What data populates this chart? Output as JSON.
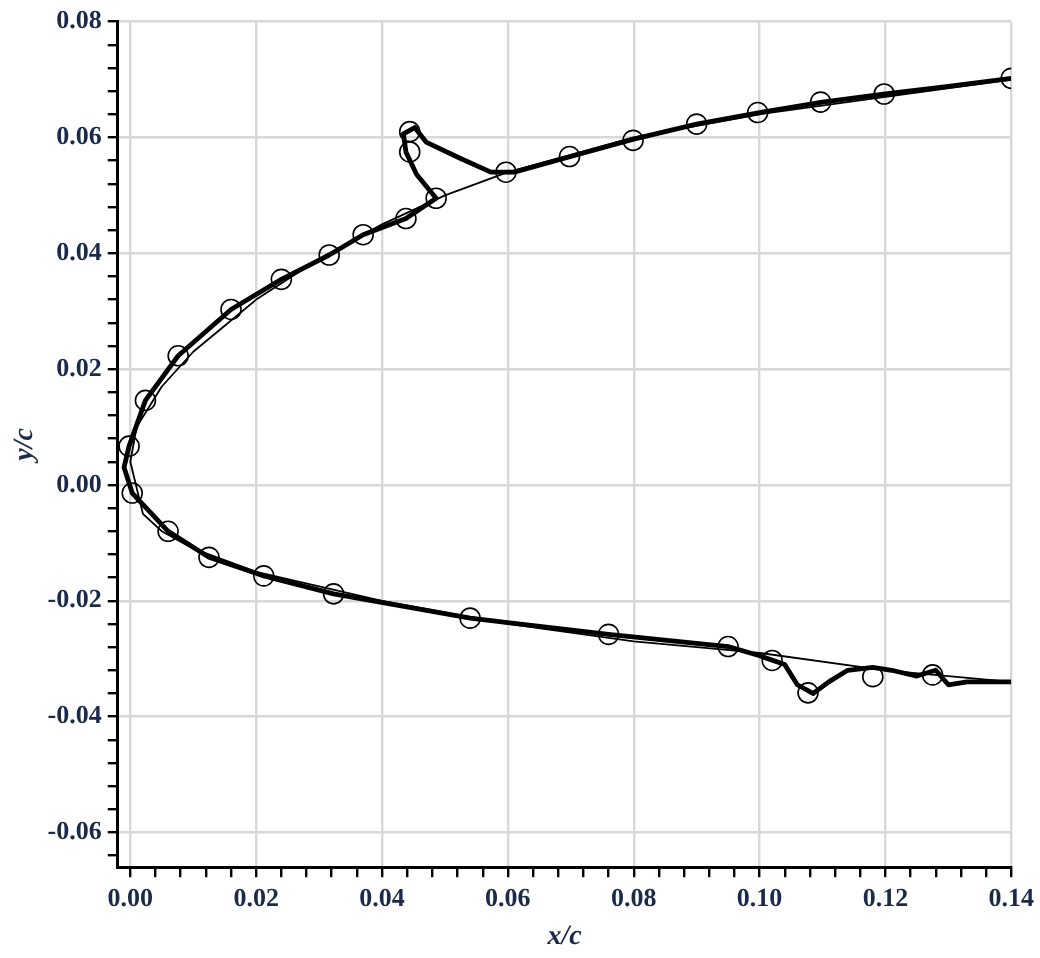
{
  "chart_data": {
    "type": "line",
    "xlabel": "x/c",
    "ylabel": "y/c",
    "xlim": [
      -0.002,
      0.14
    ],
    "ylim": [
      -0.066,
      0.08
    ],
    "xticks": [
      {
        "value": 0,
        "label": "0.00"
      },
      {
        "value": 0.004,
        "label": null
      },
      {
        "value": 0.008,
        "label": null
      },
      {
        "value": 0.012,
        "label": null
      },
      {
        "value": 0.016,
        "label": null
      },
      {
        "value": 0.02,
        "label": "0.02"
      },
      {
        "value": 0.024,
        "label": null
      },
      {
        "value": 0.028,
        "label": null
      },
      {
        "value": 0.032,
        "label": null
      },
      {
        "value": 0.036,
        "label": null
      },
      {
        "value": 0.04,
        "label": "0.04"
      },
      {
        "value": 0.044,
        "label": null
      },
      {
        "value": 0.048,
        "label": null
      },
      {
        "value": 0.052,
        "label": null
      },
      {
        "value": 0.056,
        "label": null
      },
      {
        "value": 0.06,
        "label": "0.06"
      },
      {
        "value": 0.064,
        "label": null
      },
      {
        "value": 0.068,
        "label": null
      },
      {
        "value": 0.072,
        "label": null
      },
      {
        "value": 0.076,
        "label": null
      },
      {
        "value": 0.08,
        "label": "0.08"
      },
      {
        "value": 0.084,
        "label": null
      },
      {
        "value": 0.088,
        "label": null
      },
      {
        "value": 0.092,
        "label": null
      },
      {
        "value": 0.096,
        "label": null
      },
      {
        "value": 0.1,
        "label": "0.10"
      },
      {
        "value": 0.104,
        "label": null
      },
      {
        "value": 0.108,
        "label": null
      },
      {
        "value": 0.112,
        "label": null
      },
      {
        "value": 0.116,
        "label": null
      },
      {
        "value": 0.12,
        "label": "0.12"
      },
      {
        "value": 0.124,
        "label": null
      },
      {
        "value": 0.128,
        "label": null
      },
      {
        "value": 0.132,
        "label": null
      },
      {
        "value": 0.136,
        "label": null
      },
      {
        "value": 0.14,
        "label": "0.14"
      }
    ],
    "yticks": [
      {
        "value": -0.064,
        "label": null
      },
      {
        "value": -0.06,
        "label": "-0.06"
      },
      {
        "value": -0.056,
        "label": null
      },
      {
        "value": -0.052,
        "label": null
      },
      {
        "value": -0.048,
        "label": null
      },
      {
        "value": -0.044,
        "label": null
      },
      {
        "value": -0.04,
        "label": "-0.04"
      },
      {
        "value": -0.036,
        "label": null
      },
      {
        "value": -0.032,
        "label": null
      },
      {
        "value": -0.028,
        "label": null
      },
      {
        "value": -0.024,
        "label": null
      },
      {
        "value": -0.02,
        "label": "-0.02"
      },
      {
        "value": -0.016,
        "label": null
      },
      {
        "value": -0.012,
        "label": null
      },
      {
        "value": -0.008,
        "label": null
      },
      {
        "value": -0.004,
        "label": null
      },
      {
        "value": 0,
        "label": "0.00"
      },
      {
        "value": 0.004,
        "label": null
      },
      {
        "value": 0.008,
        "label": null
      },
      {
        "value": 0.012,
        "label": null
      },
      {
        "value": 0.016,
        "label": null
      },
      {
        "value": 0.02,
        "label": "0.02"
      },
      {
        "value": 0.024,
        "label": null
      },
      {
        "value": 0.028,
        "label": null
      },
      {
        "value": 0.032,
        "label": null
      },
      {
        "value": 0.036,
        "label": null
      },
      {
        "value": 0.04,
        "label": "0.04"
      },
      {
        "value": 0.044,
        "label": null
      },
      {
        "value": 0.048,
        "label": null
      },
      {
        "value": 0.052,
        "label": null
      },
      {
        "value": 0.056,
        "label": null
      },
      {
        "value": 0.06,
        "label": "0.06"
      },
      {
        "value": 0.064,
        "label": null
      },
      {
        "value": 0.068,
        "label": null
      },
      {
        "value": 0.072,
        "label": null
      },
      {
        "value": 0.076,
        "label": null
      },
      {
        "value": 0.08,
        "label": "0.08"
      }
    ],
    "grid": true,
    "legend": false,
    "series": [
      {
        "type": "line",
        "color": "#000000",
        "x": [
          0.14,
          0.13,
          0.12,
          0.11,
          0.1,
          0.09,
          0.08,
          0.07,
          0.061,
          0.0573,
          0.0524,
          0.047,
          0.0452,
          0.0434,
          0.0438,
          0.0455,
          0.0486,
          0.0438,
          0.037,
          0.0316,
          0.024,
          0.016,
          0.0076,
          0.0024,
          -0.0002,
          -0.001,
          0.0003,
          0.006,
          0.0125,
          0.0212,
          0.0323,
          0.054,
          0.076,
          0.095,
          0.1,
          0.104,
          0.106,
          0.1085,
          0.111,
          0.114,
          0.118,
          0.121,
          0.125,
          0.128,
          0.13,
          0.133,
          0.14
        ],
        "values": [
          0.0702,
          0.0688,
          0.0675,
          0.0661,
          0.0643,
          0.0623,
          0.0597,
          0.0567,
          0.054,
          0.054,
          0.0564,
          0.0592,
          0.0617,
          0.0606,
          0.0575,
          0.0536,
          0.0495,
          0.046,
          0.0432,
          0.0397,
          0.0355,
          0.0303,
          0.0223,
          0.0146,
          0.0067,
          0.003,
          -0.0014,
          -0.008,
          -0.0125,
          -0.0157,
          -0.0188,
          -0.023,
          -0.0258,
          -0.0279,
          -0.0295,
          -0.031,
          -0.0345,
          -0.036,
          -0.034,
          -0.032,
          -0.0315,
          -0.032,
          -0.033,
          -0.032,
          -0.0345,
          -0.034,
          -0.034
        ]
      },
      {
        "type": "line",
        "color": "#000000",
        "x": [
          0.14,
          0.12,
          0.1,
          0.08,
          0.06,
          0.05,
          0.04,
          0.03,
          0.02,
          0.01,
          0.005,
          0.001,
          0,
          0.002,
          0.005,
          0.01,
          0.02,
          0.04,
          0.06,
          0.08,
          0.1,
          0.12,
          0.14
        ],
        "values": [
          0.07,
          0.067,
          0.064,
          0.06,
          0.054,
          0.05,
          0.045,
          0.039,
          0.032,
          0.023,
          0.017,
          0.01,
          0.004,
          -0.005,
          -0.008,
          -0.011,
          -0.015,
          -0.02,
          -0.024,
          -0.027,
          -0.029,
          -0.032,
          -0.034
        ]
      },
      {
        "type": "scatter",
        "color": "#000000",
        "marker": "circle",
        "x": [
          -0.0002,
          0.0024,
          0.0076,
          0.016,
          0.024,
          0.0316,
          0.037,
          0.0438,
          0.0486,
          0.0444,
          0.0444,
          0.0597,
          0.0698,
          0.0799,
          0.09,
          0.0997,
          0.1097,
          0.1198,
          0.14,
          0.0003,
          0.006,
          0.0125,
          0.0212,
          0.0323,
          0.054,
          0.076,
          0.095,
          0.102,
          0.1077,
          0.118,
          0.1275
        ],
        "values": [
          0.0067,
          0.0146,
          0.0223,
          0.0303,
          0.0355,
          0.0397,
          0.0432,
          0.046,
          0.0495,
          0.0575,
          0.061,
          0.054,
          0.0567,
          0.0595,
          0.0623,
          0.0643,
          0.0661,
          0.0675,
          0.0702,
          -0.0014,
          -0.008,
          -0.0125,
          -0.0157,
          -0.0188,
          -0.023,
          -0.0258,
          -0.0279,
          -0.0303,
          -0.0359,
          -0.0331,
          -0.0328
        ]
      }
    ]
  }
}
